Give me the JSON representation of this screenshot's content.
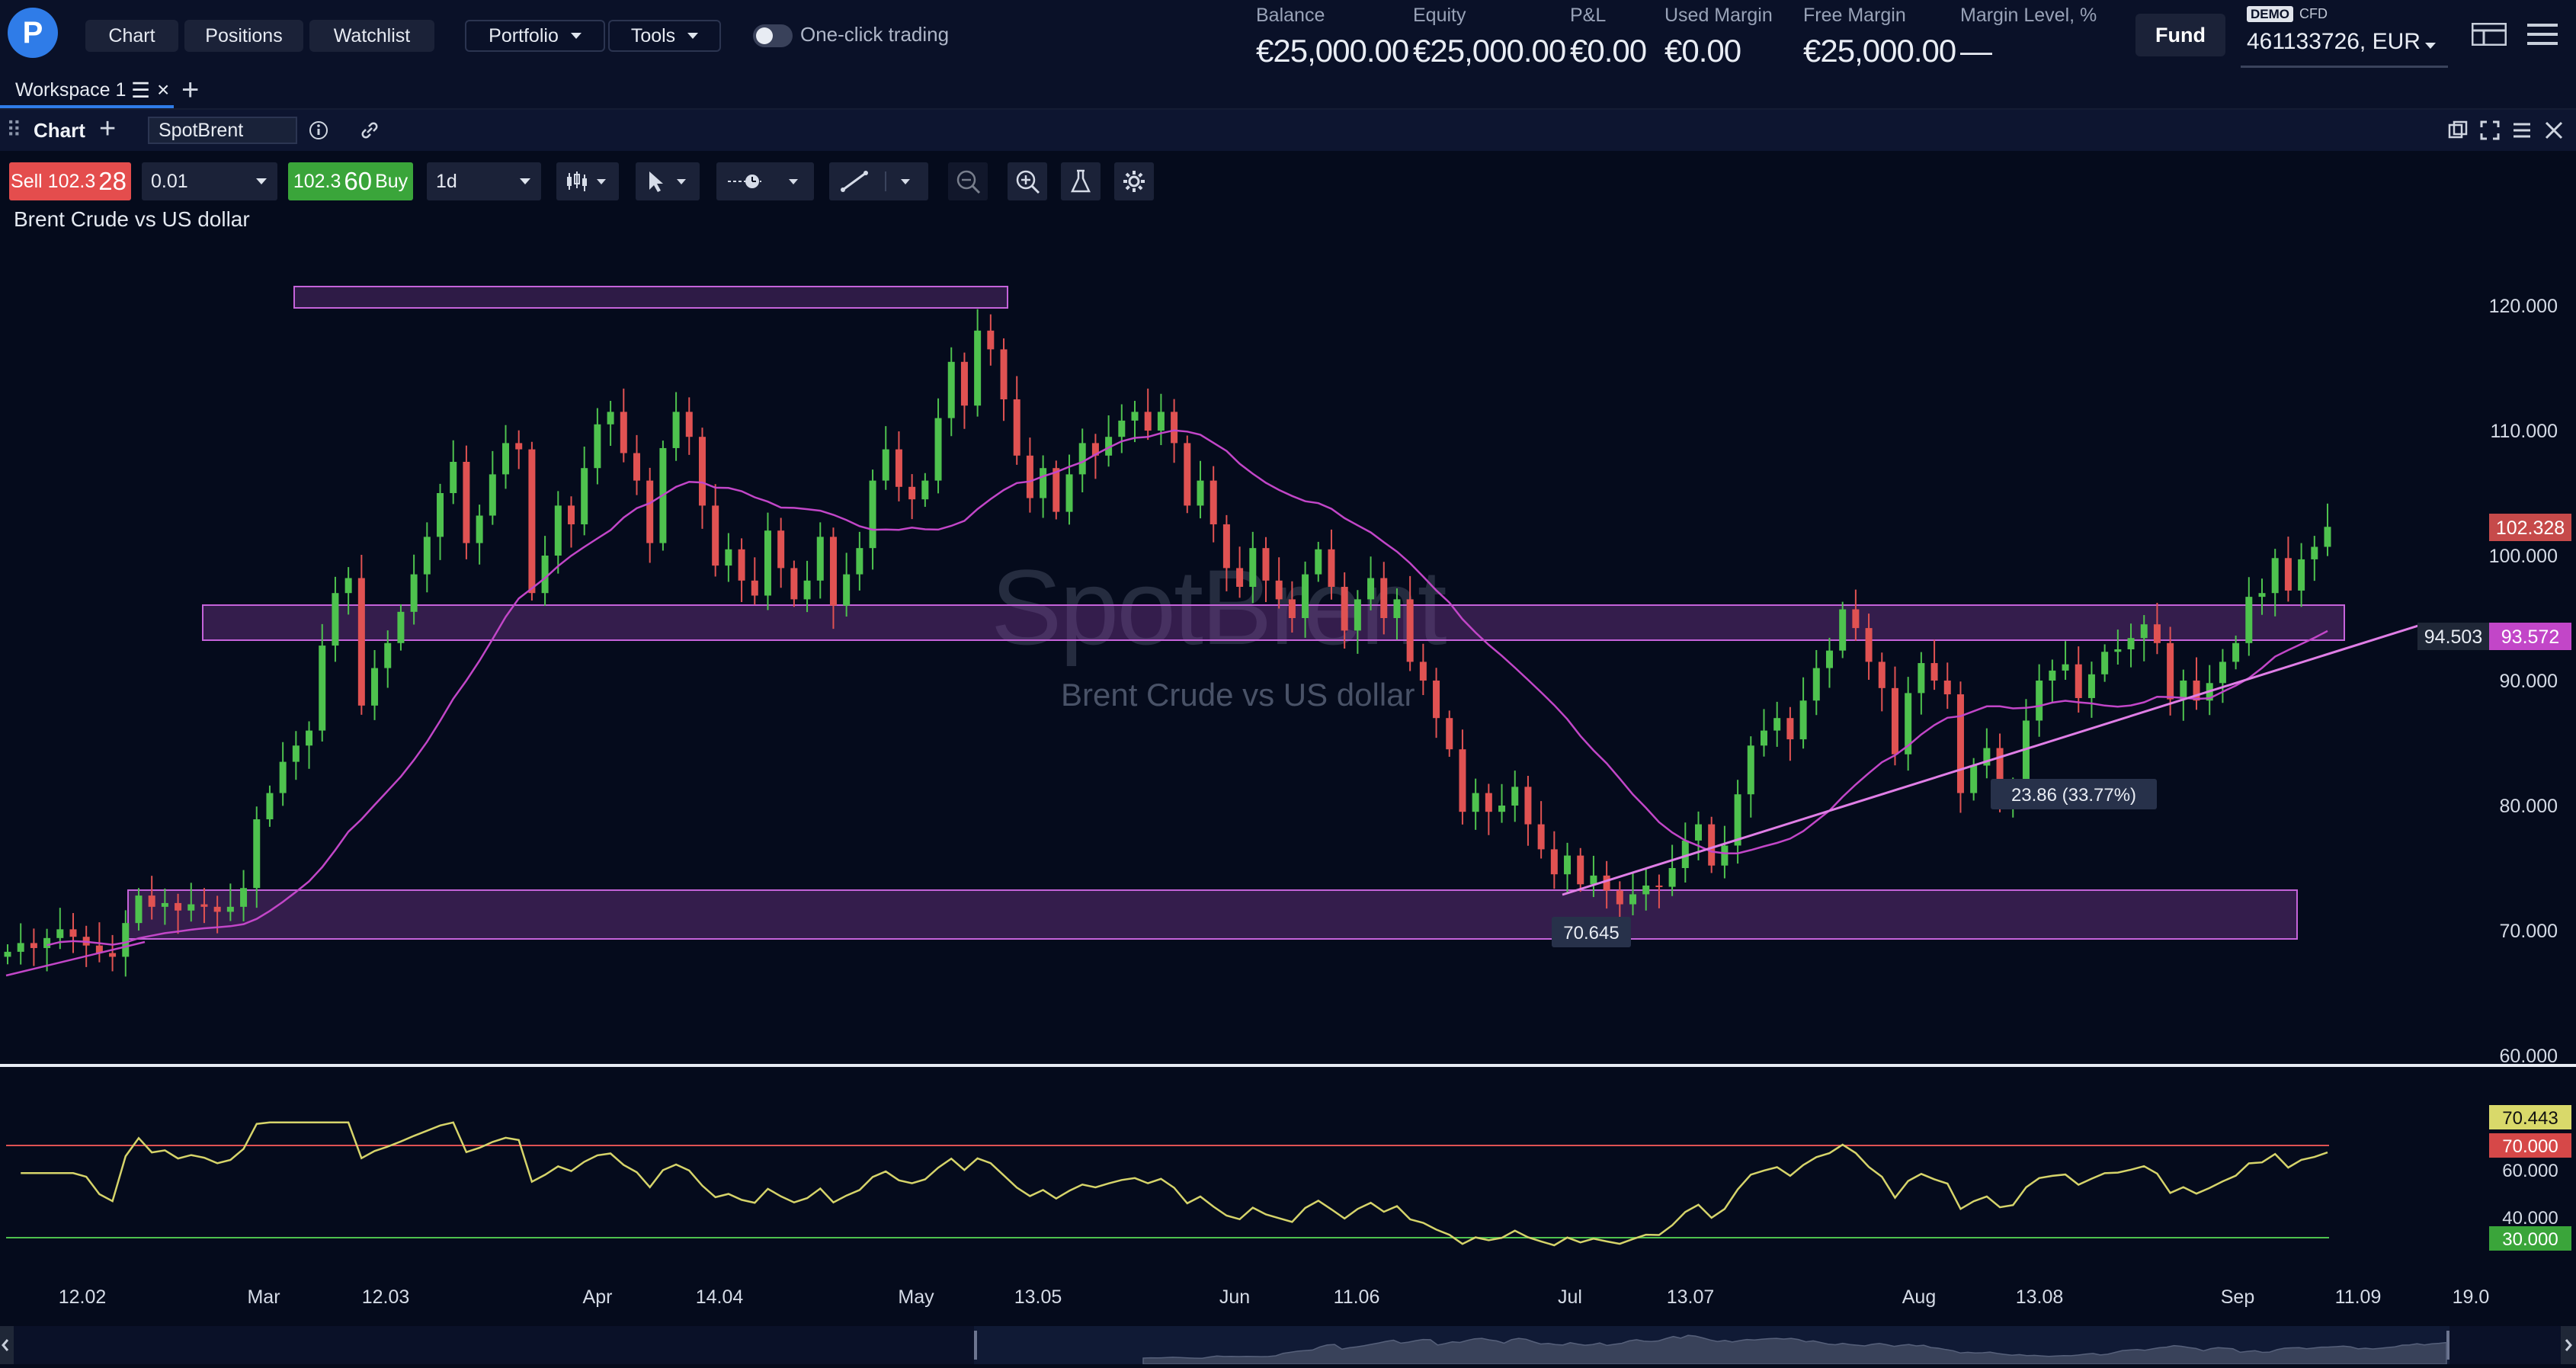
{
  "topbar": {
    "logo_letter": "P",
    "nav": [
      "Chart",
      "Positions",
      "Watchlist"
    ],
    "dropdowns": [
      "Portfolio",
      "Tools"
    ],
    "one_click_label": "One-click trading",
    "stats": [
      {
        "label": "Balance",
        "value": "€25,000.00"
      },
      {
        "label": "Equity",
        "value": "€25,000.00"
      },
      {
        "label": "P&L",
        "value": "€0.00"
      },
      {
        "label": "Used Margin",
        "value": "€0.00"
      },
      {
        "label": "Free Margin",
        "value": "€25,000.00"
      },
      {
        "label": "Margin Level, %",
        "value": "—"
      }
    ],
    "fund_label": "Fund",
    "demo_badge": "DEMO",
    "account_type": "CFD",
    "account_id": "461133726, EUR"
  },
  "workspace": {
    "tab_label": "Workspace 1"
  },
  "chart_panel": {
    "label": "Chart",
    "symbol": "SpotBrent"
  },
  "trade": {
    "sell_prefix": "Sell 102.3",
    "sell_big": "28",
    "buy_prefix": "102.3",
    "buy_big": "60",
    "buy_suffix": "Buy",
    "quantity": "0.01",
    "timeframe": "1d"
  },
  "chart": {
    "title": "Brent Crude vs US dollar",
    "watermark_symbol": "SpotBrent",
    "watermark_desc": "Brent Crude vs US dollar",
    "colors": {
      "up": "#4ec24e",
      "down": "#e05252",
      "ma": "#c246c8",
      "zone": "#b65ed0",
      "rsi": "#d6d46a"
    }
  },
  "chart_data": {
    "type": "candlestick",
    "title": "Brent Crude vs US dollar",
    "x_ticks": [
      "12.02",
      "Mar",
      "12.03",
      "Apr",
      "14.04",
      "May",
      "13.05",
      "Jun",
      "11.06",
      "Jul",
      "13.07",
      "Aug",
      "13.08",
      "Sep",
      "11.09",
      "19.0"
    ],
    "y_ticks": [
      "120.000",
      "110.000",
      "100.000",
      "90.000",
      "80.000",
      "70.000",
      "60.000"
    ],
    "ylim": [
      60,
      124
    ],
    "current_price": "102.328",
    "current_price_value": 102.328,
    "ma_label": "93.572",
    "trendline_label": "94.503",
    "annotation_low": "70.645",
    "annotation_measure": "23.86 (33.77%)",
    "closes": [
      68.3,
      69.0,
      68.6,
      69.4,
      70.1,
      69.5,
      68.8,
      68.2,
      67.9,
      70.6,
      72.8,
      71.9,
      72.2,
      71.6,
      72.1,
      71.9,
      71.5,
      71.9,
      73.4,
      78.9,
      81.0,
      83.5,
      84.8,
      86.0,
      92.8,
      97.0,
      98.2,
      88.0,
      91.0,
      93.0,
      95.5,
      98.5,
      101.5,
      105.0,
      107.5,
      101.0,
      103.2,
      106.5,
      109.0,
      108.5,
      97.0,
      100.0,
      104.0,
      102.5,
      107.0,
      110.5,
      111.5,
      108.2,
      106.0,
      101.0,
      108.6,
      111.5,
      109.5,
      104.0,
      99.2,
      100.5,
      98.0,
      96.8,
      102.0,
      99.0,
      96.5,
      98.0,
      101.5,
      96.0,
      98.5,
      100.6,
      106.0,
      108.5,
      105.5,
      104.5,
      106.0,
      111.0,
      115.5,
      112.0,
      118.0,
      116.5,
      112.5,
      108.0,
      104.6,
      107.0,
      103.5,
      106.5,
      109.0,
      108.0,
      109.5,
      110.8,
      111.5,
      110.0,
      111.5,
      109.0,
      104.0,
      106.0,
      102.5,
      99.0,
      97.5,
      100.6,
      98.0,
      96.5,
      95.0,
      98.5,
      100.5,
      97.5,
      94.0,
      96.5,
      98.2,
      95.0,
      96.5,
      91.5,
      90.0,
      87.0,
      84.5,
      79.5,
      81.0,
      79.5,
      80.0,
      81.5,
      78.5,
      76.5,
      74.5,
      76.0,
      73.7,
      74.4,
      73.2,
      72.1,
      72.9,
      73.6,
      73.5,
      75.0,
      77.2,
      78.5,
      75.2,
      76.8,
      80.9,
      84.8,
      86.0,
      87.0,
      85.3,
      88.4,
      91.0,
      92.4,
      95.7,
      94.2,
      91.5,
      89.4,
      84.1,
      89.0,
      91.4,
      90.0,
      88.9,
      81.0,
      83.2,
      84.6,
      80.9,
      81.5,
      86.8,
      90.0,
      90.8,
      91.3,
      88.6,
      90.5,
      92.3,
      92.5,
      93.4,
      94.5,
      93.0,
      88.5,
      90.0,
      88.4,
      89.8,
      91.5,
      93.0,
      96.7,
      97.0,
      99.8,
      97.2,
      99.7,
      100.7,
      102.3
    ]
  },
  "rsi": {
    "values": [
      "70.443",
      "70.000",
      "60.000",
      "40.000",
      "30.000"
    ],
    "current": 70.443,
    "overbought": 70,
    "oversold": 30,
    "ylim": [
      20,
      80
    ]
  }
}
